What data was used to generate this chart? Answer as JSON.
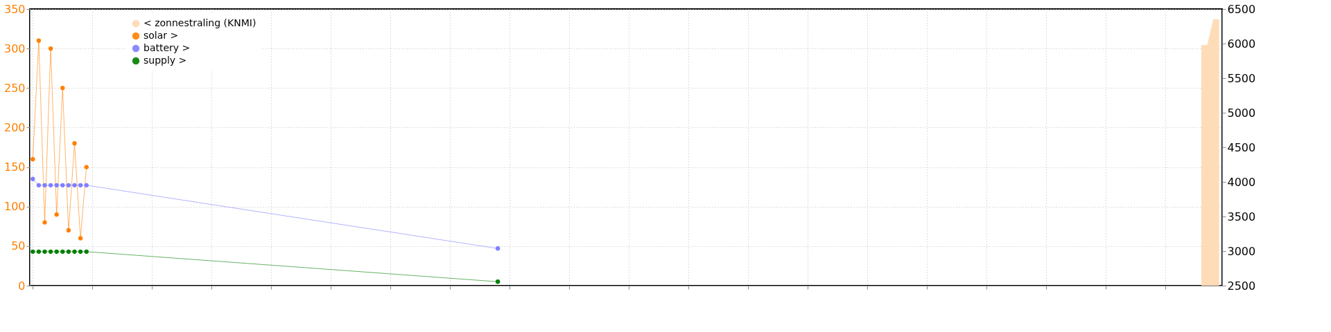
{
  "chart_data": {
    "type": "line",
    "categories": [
      null,
      null,
      null,
      null,
      null,
      null,
      null,
      null,
      null,
      null,
      null,
      null,
      null,
      null,
      null,
      null,
      null,
      null,
      null,
      null,
      null,
      null,
      null,
      null,
      null,
      null,
      null,
      null,
      null,
      null,
      null,
      null,
      null,
      null,
      null,
      null,
      null,
      null,
      null,
      null,
      null,
      null,
      null,
      null,
      null,
      null,
      null,
      null,
      null,
      null,
      null,
      null,
      null,
      null,
      null,
      null,
      null,
      null,
      null,
      null,
      null,
      null,
      null,
      null,
      null,
      null,
      null,
      null,
      null,
      null,
      null,
      null,
      null,
      null,
      null,
      null,
      null,
      null,
      null,
      null,
      null,
      null,
      null,
      null,
      null,
      null,
      null,
      null,
      null,
      null,
      null,
      null,
      null,
      null,
      null,
      null,
      null,
      null,
      null,
      null,
      null,
      null,
      null,
      null,
      null,
      null,
      null,
      null,
      null,
      null,
      null,
      null,
      null,
      null,
      null,
      null,
      null,
      null,
      null,
      null,
      null,
      null,
      null,
      null,
      null,
      null,
      null,
      null,
      null,
      null,
      null,
      null,
      null,
      null,
      null,
      null,
      null,
      null,
      null,
      null,
      null,
      null,
      null,
      null,
      null,
      null,
      null,
      null,
      null,
      null,
      null,
      null,
      null,
      null,
      null,
      null,
      null,
      null,
      null,
      null,
      null,
      null,
      null,
      null,
      null,
      null,
      null,
      null,
      null,
      null,
      null,
      null,
      null,
      null,
      null,
      null,
      null,
      null,
      null,
      null,
      null,
      null,
      null,
      null,
      null,
      null,
      null,
      null,
      null,
      null,
      null,
      null,
      null,
      null,
      null,
      null,
      null,
      null,
      null,
      null
    ],
    "series": [
      {
        "name": "< zonnestraling (KNMI)",
        "type": "area",
        "axis": "y2",
        "marker": "none",
        "color": "#ffd8b0",
        "values": [
          null,
          null,
          null,
          null,
          null,
          null,
          null,
          null,
          null,
          null,
          null,
          null,
          null,
          null,
          null,
          null,
          null,
          null,
          null,
          null,
          null,
          null,
          null,
          null,
          null,
          null,
          null,
          null,
          null,
          null,
          null,
          null,
          null,
          null,
          null,
          null,
          null,
          null,
          null,
          null,
          null,
          null,
          null,
          null,
          null,
          null,
          null,
          null,
          null,
          null,
          null,
          null,
          null,
          null,
          null,
          null,
          null,
          null,
          null,
          null,
          null,
          null,
          null,
          null,
          null,
          null,
          null,
          null,
          null,
          null,
          null,
          null,
          null,
          null,
          null,
          null,
          null,
          null,
          null,
          null,
          null,
          null,
          null,
          null,
          null,
          null,
          null,
          null,
          null,
          null,
          null,
          null,
          null,
          null,
          null,
          null,
          null,
          null,
          null,
          null,
          null,
          null,
          null,
          null,
          null,
          null,
          null,
          null,
          null,
          null,
          null,
          null,
          null,
          null,
          null,
          null,
          null,
          null,
          null,
          null,
          null,
          null,
          null,
          null,
          null,
          null,
          null,
          null,
          null,
          null,
          null,
          null,
          null,
          null,
          null,
          null,
          null,
          null,
          null,
          null,
          null,
          null,
          null,
          null,
          null,
          null,
          null,
          null,
          null,
          null,
          null,
          null,
          null,
          null,
          null,
          null,
          null,
          null,
          null,
          null,
          null,
          null,
          null,
          null,
          null,
          null,
          null,
          null,
          null,
          null,
          null,
          null,
          null,
          null,
          null,
          null,
          null,
          null,
          null,
          null,
          null,
          null,
          null,
          null,
          null,
          null,
          null,
          null,
          null,
          null,
          null,
          null,
          null,
          null,
          null,
          null,
          5980,
          5980,
          6350,
          6350
        ]
      },
      {
        "name": "solar >",
        "color": "#ff8000",
        "values": [
          160,
          310,
          80,
          300,
          90,
          250,
          70,
          180,
          60,
          150,
          null,
          null,
          null,
          null,
          null,
          null,
          null,
          null,
          null,
          null,
          null,
          null,
          null,
          null,
          null,
          null,
          null,
          null,
          null,
          null,
          null,
          null,
          null,
          null,
          null,
          null,
          null,
          null,
          null,
          null,
          null,
          null,
          null,
          null,
          null,
          null,
          null,
          null,
          null,
          null,
          null,
          null,
          null,
          null,
          null,
          null,
          null,
          null,
          null,
          null,
          null,
          null,
          null,
          null,
          null,
          null,
          null,
          null,
          null,
          null,
          null,
          null,
          null,
          null,
          null,
          null,
          null,
          null,
          null,
          null,
          null,
          null,
          null,
          null,
          null,
          null,
          null,
          null,
          null,
          null,
          null,
          null,
          null,
          null,
          null,
          null,
          null,
          null,
          null,
          null,
          null,
          null,
          null,
          null,
          null,
          null,
          null,
          null,
          null,
          null,
          null,
          null,
          null,
          null,
          null,
          null,
          null,
          null,
          null,
          null,
          null,
          null,
          null,
          null,
          null,
          null,
          null,
          null,
          null,
          null,
          null,
          null,
          null,
          null,
          null,
          null,
          null,
          null,
          null,
          null,
          null,
          null,
          null,
          null,
          null,
          null,
          null,
          null,
          null,
          null,
          null,
          null,
          null,
          null,
          null,
          null,
          null,
          null,
          null,
          null,
          null,
          null,
          null,
          null,
          null,
          null,
          null,
          null,
          null,
          null,
          null,
          null,
          null,
          null,
          null,
          null,
          null,
          null,
          null,
          null,
          null,
          null,
          null,
          null,
          null,
          null,
          null,
          null,
          null,
          null,
          null,
          null,
          null,
          null,
          null,
          null,
          null,
          null,
          null,
          null
        ]
      },
      {
        "name": "battery >",
        "color": "#7f7fff",
        "values": [
          135,
          127,
          127,
          127,
          127,
          127,
          127,
          127,
          127,
          127,
          null,
          null,
          null,
          null,
          null,
          null,
          null,
          null,
          null,
          null,
          null,
          null,
          null,
          null,
          null,
          null,
          null,
          null,
          null,
          null,
          null,
          null,
          null,
          null,
          null,
          null,
          null,
          null,
          null,
          null,
          null,
          null,
          null,
          null,
          null,
          null,
          null,
          null,
          null,
          null,
          null,
          null,
          null,
          null,
          null,
          null,
          null,
          null,
          null,
          null,
          null,
          null,
          null,
          null,
          null,
          null,
          null,
          null,
          null,
          null,
          null,
          null,
          null,
          null,
          null,
          null,
          null,
          null,
          47,
          null,
          null,
          null,
          null,
          null,
          null,
          null,
          null,
          null,
          null,
          null,
          null,
          null,
          null,
          null,
          null,
          null,
          null,
          null,
          null,
          null,
          null,
          null,
          null,
          null,
          null,
          null,
          null,
          null,
          null,
          null,
          null,
          null,
          null,
          null,
          null,
          null,
          null,
          null,
          null,
          null,
          null,
          null,
          null,
          null,
          null,
          null,
          null,
          null,
          null,
          null,
          null,
          null,
          null,
          null,
          null,
          null,
          null,
          null,
          null,
          null,
          null,
          null,
          null,
          null,
          null,
          null,
          null,
          null,
          null,
          null,
          null,
          null,
          null,
          null,
          null,
          null,
          null,
          null,
          null,
          null,
          null,
          null,
          null,
          null,
          null,
          null,
          null,
          null,
          null,
          null,
          null,
          null,
          null,
          null,
          null,
          null,
          null,
          null,
          null,
          null,
          null,
          null,
          null,
          null,
          null,
          null,
          null,
          null,
          null,
          null,
          null,
          null,
          null,
          null,
          null,
          null,
          null,
          null,
          null,
          null
        ]
      },
      {
        "name": "supply >",
        "color": "#008000",
        "values": [
          43,
          43,
          43,
          43,
          43,
          43,
          43,
          43,
          43,
          43,
          null,
          null,
          null,
          null,
          null,
          null,
          null,
          null,
          null,
          null,
          null,
          null,
          null,
          null,
          null,
          null,
          null,
          null,
          null,
          null,
          null,
          null,
          null,
          null,
          null,
          null,
          null,
          null,
          null,
          null,
          null,
          null,
          null,
          null,
          null,
          null,
          null,
          null,
          null,
          null,
          null,
          null,
          null,
          null,
          null,
          null,
          null,
          null,
          null,
          null,
          null,
          null,
          null,
          null,
          null,
          null,
          null,
          null,
          null,
          null,
          null,
          null,
          null,
          null,
          null,
          null,
          null,
          null,
          5,
          null,
          null,
          null,
          null,
          null,
          null,
          null,
          null,
          null,
          null,
          null,
          null,
          null,
          null,
          null,
          null,
          null,
          null,
          null,
          null,
          null,
          null,
          null,
          null,
          null,
          null,
          null,
          null,
          null,
          null,
          null,
          null,
          null,
          null,
          null,
          null,
          null,
          null,
          null,
          null,
          null,
          null,
          null,
          null,
          null,
          null,
          null,
          null,
          null,
          null,
          null,
          null,
          null,
          null,
          null,
          null,
          null,
          null,
          null,
          null,
          null,
          null,
          null,
          null,
          null,
          null,
          null,
          null,
          null,
          null,
          null,
          null,
          null,
          null,
          null,
          null,
          null,
          null,
          null,
          null,
          null,
          null,
          null,
          null,
          null,
          null,
          null,
          null,
          null,
          null,
          null,
          null,
          null,
          null,
          null,
          null,
          null,
          null,
          null,
          null,
          null,
          null,
          null,
          null,
          null,
          null,
          null,
          null,
          null,
          null,
          null,
          null,
          null,
          null,
          null,
          null,
          null,
          null,
          null,
          null,
          null
        ]
      }
    ],
    "ylim": [
      0,
      350
    ],
    "yticks": [
      0,
      50,
      100,
      150,
      200,
      250,
      300,
      350
    ],
    "y2lim": [
      2500,
      6500
    ],
    "y2ticks": [
      2500,
      3000,
      3500,
      4000,
      4500,
      5000,
      5500,
      6000,
      6500
    ],
    "grid": true,
    "legend": "top left",
    "marker": "circle",
    "line_style": "solid"
  }
}
